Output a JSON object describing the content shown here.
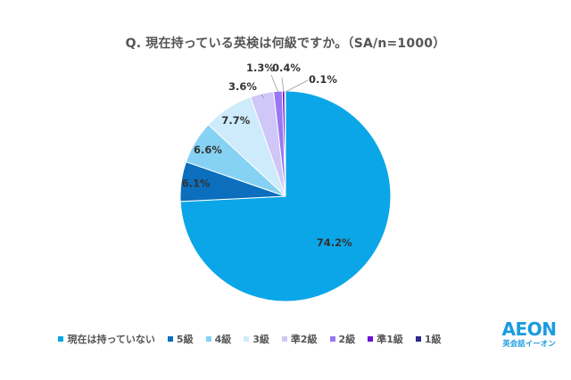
{
  "chart_data": {
    "type": "pie",
    "title": "Q. 現在持っている英検は何級ですか。（SA/n=1000）",
    "slices": [
      {
        "label": "現在は持っていない",
        "value": 74.2,
        "display": "74.2%",
        "color": "#0aa6e8"
      },
      {
        "label": "5級",
        "value": 6.1,
        "display": "6.1%",
        "color": "#0b6fbd"
      },
      {
        "label": "4級",
        "value": 6.6,
        "display": "6.6%",
        "color": "#86d2f4"
      },
      {
        "label": "3級",
        "value": 7.7,
        "display": "7.7%",
        "color": "#cdebfa"
      },
      {
        "label": "準2級",
        "value": 3.6,
        "display": "3.6%",
        "color": "#cfc7f7"
      },
      {
        "label": "2級",
        "value": 1.3,
        "display": "1.3%",
        "color": "#9a76f2"
      },
      {
        "label": "準1級",
        "value": 0.4,
        "display": "0.4%",
        "color": "#6a12d8"
      },
      {
        "label": "1級",
        "value": 0.1,
        "display": "0.1%",
        "color": "#2b2a8c"
      }
    ],
    "legend_position": "bottom"
  },
  "logo": {
    "main": "AEON",
    "sub": "英会話イーオン"
  }
}
